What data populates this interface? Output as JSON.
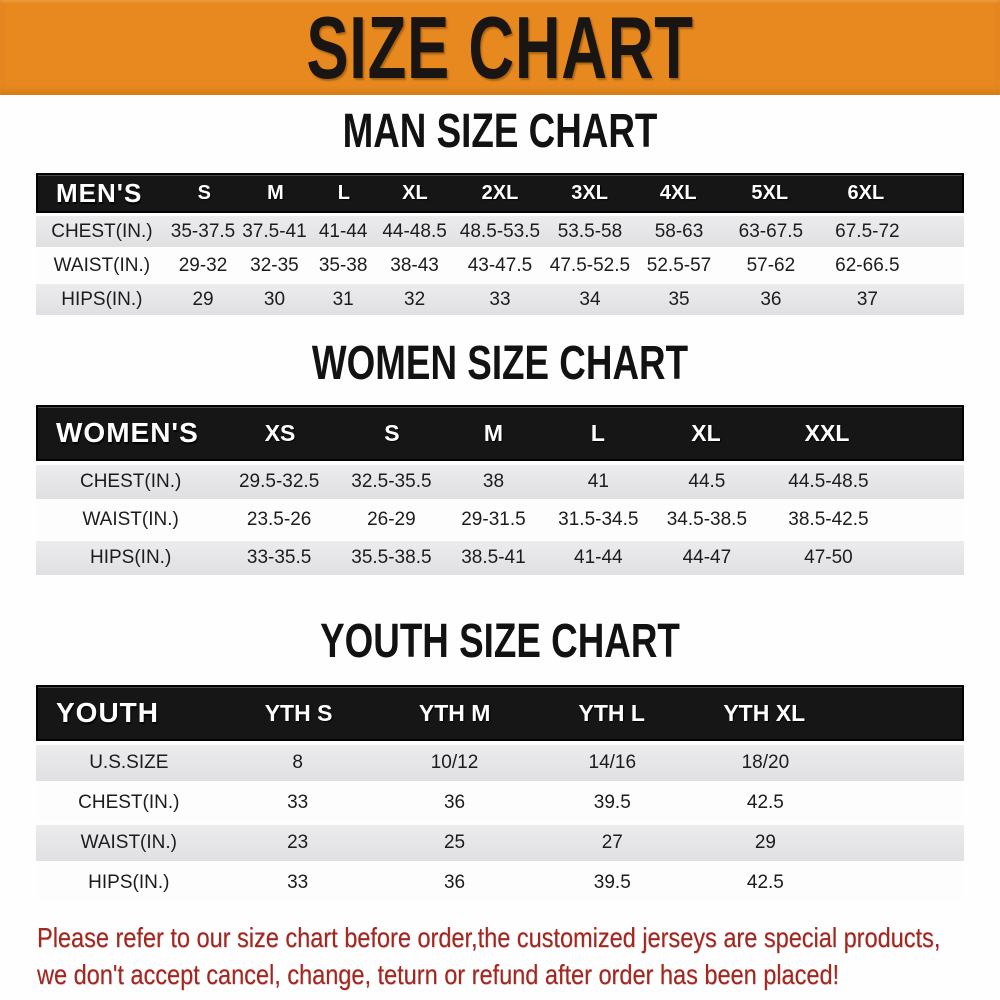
{
  "banner": {
    "title": "SIZE CHART",
    "bg_color": "#e8891f",
    "text_color": "#181512"
  },
  "sections": [
    {
      "title": "MAN SIZE CHART",
      "header_label": "MEN'S",
      "columns": [
        "S",
        "M",
        "L",
        "XL",
        "2XL",
        "3XL",
        "4XL",
        "5XL",
        "6XL"
      ],
      "rows": [
        {
          "label": "CHEST(IN.)",
          "values": [
            "35-37.5",
            "37.5-41",
            "41-44",
            "44-48.5",
            "48.5-53.5",
            "53.5-58",
            "58-63",
            "63-67.5",
            "67.5-72"
          ]
        },
        {
          "label": "WAIST(IN.)",
          "values": [
            "29-32",
            "32-35",
            "35-38",
            "38-43",
            "43-47.5",
            "47.5-52.5",
            "52.5-57",
            "57-62",
            "62-66.5"
          ]
        },
        {
          "label": "HIPS(IN.)",
          "values": [
            "29",
            "30",
            "31",
            "32",
            "33",
            "34",
            "35",
            "36",
            "37"
          ]
        }
      ]
    },
    {
      "title": "WOMEN SIZE CHART",
      "header_label": "WOMEN'S",
      "columns": [
        "XS",
        "S",
        "M",
        "L",
        "XL",
        "XXL"
      ],
      "rows": [
        {
          "label": "CHEST(IN.)",
          "values": [
            "29.5-32.5",
            "32.5-35.5",
            "38",
            "41",
            "44.5",
            "44.5-48.5"
          ]
        },
        {
          "label": "WAIST(IN.)",
          "values": [
            "23.5-26",
            "26-29",
            "29-31.5",
            "31.5-34.5",
            "34.5-38.5",
            "38.5-42.5"
          ]
        },
        {
          "label": "HIPS(IN.)",
          "values": [
            "33-35.5",
            "35.5-38.5",
            "38.5-41",
            "41-44",
            "44-47",
            "47-50"
          ]
        }
      ]
    },
    {
      "title": "YOUTH SIZE CHART",
      "header_label": "YOUTH",
      "columns": [
        "YTH S",
        "YTH M",
        "YTH L",
        "YTH XL"
      ],
      "rows": [
        {
          "label": "U.S.SIZE",
          "values": [
            "8",
            "10/12",
            "14/16",
            "18/20"
          ]
        },
        {
          "label": "CHEST(IN.)",
          "values": [
            "33",
            "36",
            "39.5",
            "42.5"
          ]
        },
        {
          "label": "WAIST(IN.)",
          "values": [
            "23",
            "25",
            "27",
            "29"
          ]
        },
        {
          "label": "HIPS(IN.)",
          "values": [
            "33",
            "36",
            "39.5",
            "42.5"
          ]
        }
      ]
    }
  ],
  "footer": {
    "line1": "Please refer to our size chart before order,the customized jerseys are special products,",
    "line2": "we don't accept cancel, change, teturn or refund after order has been placed!",
    "color": "#a3261f"
  },
  "chart_data": [
    {
      "type": "table",
      "title": "MAN SIZE CHART",
      "columns": [
        "MEN'S",
        "S",
        "M",
        "L",
        "XL",
        "2XL",
        "3XL",
        "4XL",
        "5XL",
        "6XL"
      ],
      "rows": [
        [
          "CHEST(IN.)",
          "35-37.5",
          "37.5-41",
          "41-44",
          "44-48.5",
          "48.5-53.5",
          "53.5-58",
          "58-63",
          "63-67.5",
          "67.5-72"
        ],
        [
          "WAIST(IN.)",
          "29-32",
          "32-35",
          "35-38",
          "38-43",
          "43-47.5",
          "47.5-52.5",
          "52.5-57",
          "57-62",
          "62-66.5"
        ],
        [
          "HIPS(IN.)",
          "29",
          "30",
          "31",
          "32",
          "33",
          "34",
          "35",
          "36",
          "37"
        ]
      ]
    },
    {
      "type": "table",
      "title": "WOMEN SIZE CHART",
      "columns": [
        "WOMEN'S",
        "XS",
        "S",
        "M",
        "L",
        "XL",
        "XXL"
      ],
      "rows": [
        [
          "CHEST(IN.)",
          "29.5-32.5",
          "32.5-35.5",
          "38",
          "41",
          "44.5",
          "44.5-48.5"
        ],
        [
          "WAIST(IN.)",
          "23.5-26",
          "26-29",
          "29-31.5",
          "31.5-34.5",
          "34.5-38.5",
          "38.5-42.5"
        ],
        [
          "HIPS(IN.)",
          "33-35.5",
          "35.5-38.5",
          "38.5-41",
          "41-44",
          "44-47",
          "47-50"
        ]
      ]
    },
    {
      "type": "table",
      "title": "YOUTH SIZE CHART",
      "columns": [
        "YOUTH",
        "YTH S",
        "YTH M",
        "YTH L",
        "YTH XL"
      ],
      "rows": [
        [
          "U.S.SIZE",
          "8",
          "10/12",
          "14/16",
          "18/20"
        ],
        [
          "CHEST(IN.)",
          "33",
          "36",
          "39.5",
          "42.5"
        ],
        [
          "WAIST(IN.)",
          "23",
          "25",
          "27",
          "29"
        ],
        [
          "HIPS(IN.)",
          "33",
          "36",
          "39.5",
          "42.5"
        ]
      ]
    }
  ]
}
